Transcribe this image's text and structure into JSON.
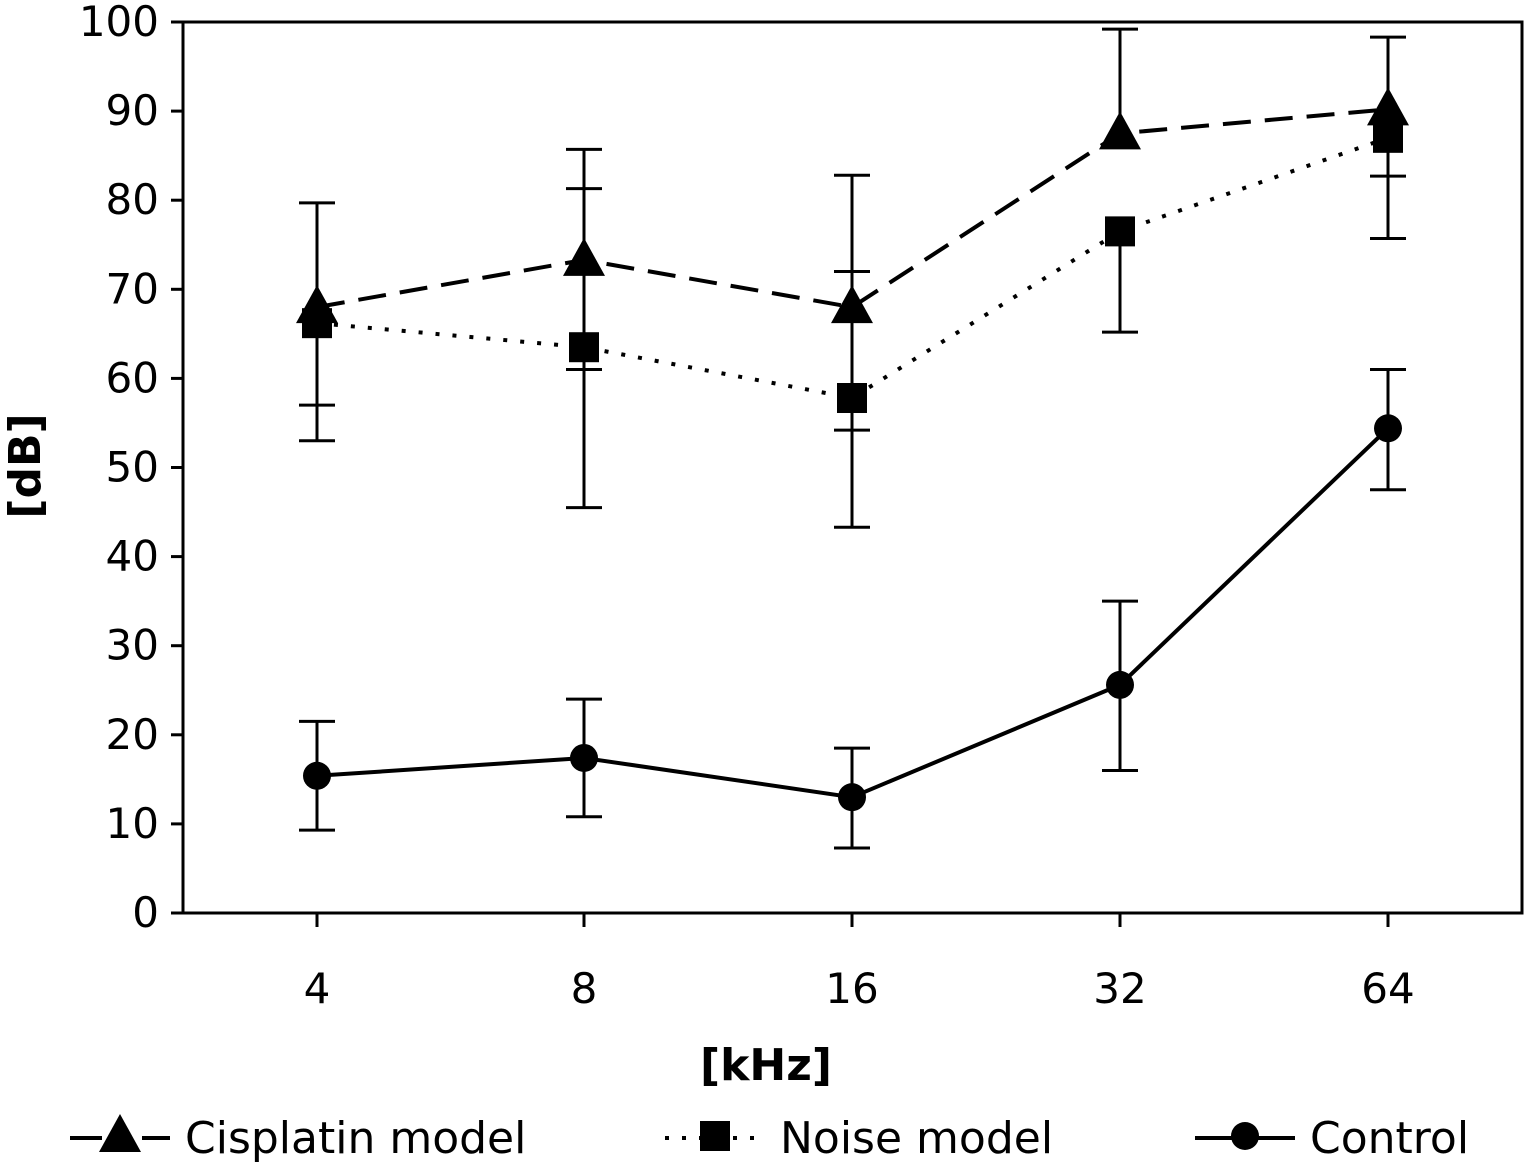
{
  "chart_data": {
    "type": "line",
    "categories": [
      "4",
      "8",
      "16",
      "32",
      "64"
    ],
    "xlabel": "[kHz]",
    "ylabel": "[dB]",
    "ylim": [
      0,
      100
    ],
    "yticks": [
      "0",
      "10",
      "20",
      "30",
      "40",
      "50",
      "60",
      "70",
      "80",
      "90",
      "100"
    ],
    "grid": false,
    "legend_position": "bottom",
    "series": [
      {
        "name": "Cisplatin model",
        "marker": "triangle",
        "line_style": "dashed",
        "values": [
          68,
          73.3,
          68,
          87.5,
          90.2
        ],
        "err_low": [
          57,
          61,
          54.2,
          87.5,
          82.7
        ],
        "err_high": [
          79.7,
          81.3,
          72,
          99.2,
          98.3
        ]
      },
      {
        "name": "Noise model",
        "marker": "square",
        "line_style": "dotted",
        "values": [
          66.2,
          63.5,
          57.8,
          76.5,
          87
        ],
        "err_low": [
          53,
          45.5,
          43.3,
          65.2,
          75.7
        ],
        "err_high": [
          66.2,
          85.7,
          82.8,
          76.5,
          87
        ]
      },
      {
        "name": "Control",
        "marker": "circle",
        "line_style": "solid",
        "values": [
          15.4,
          17.4,
          13,
          25.6,
          54.4
        ],
        "err_low": [
          9.3,
          10.8,
          7.3,
          16,
          47.5
        ],
        "err_high": [
          21.5,
          24,
          18.5,
          35,
          61
        ]
      }
    ]
  }
}
